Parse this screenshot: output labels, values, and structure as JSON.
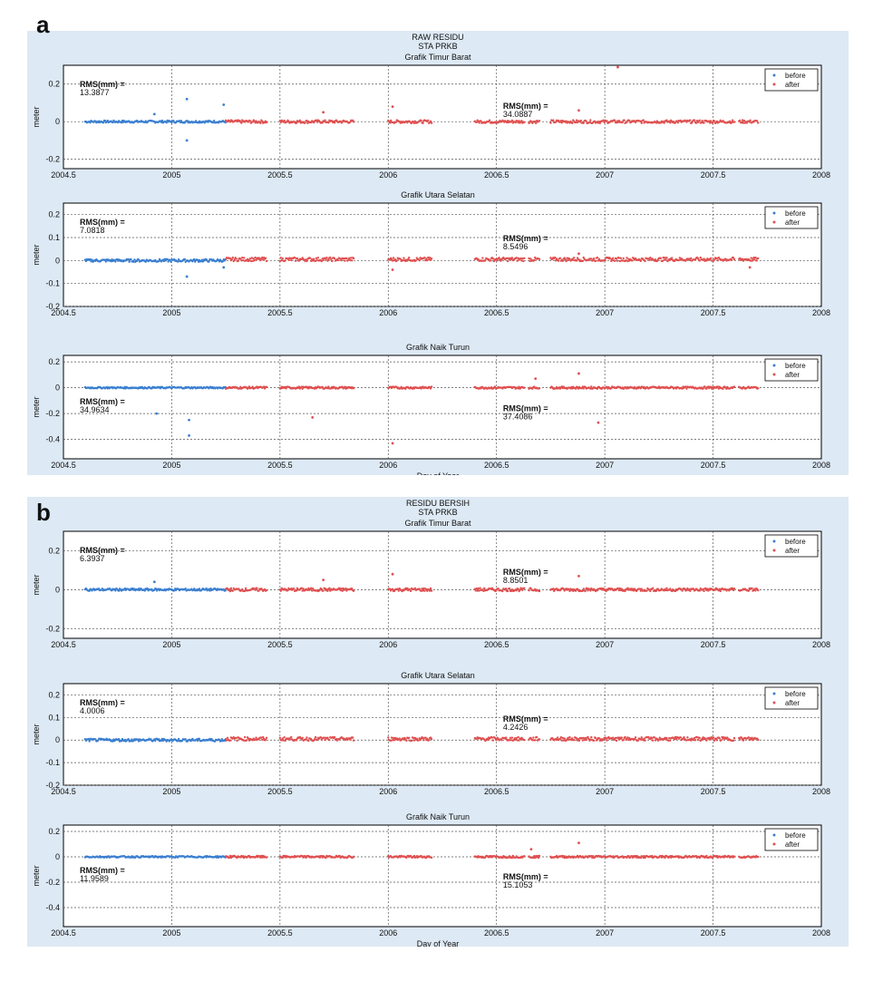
{
  "panels": [
    {
      "id": "a",
      "letter": "a",
      "title_lines": [
        "RAW RESIDU",
        "STA PRKB"
      ],
      "xlabel": "Day of Year",
      "subplots": [
        {
          "title": "Grafik Timur Barat",
          "ylabel": "meter",
          "yticks": [
            "0.2",
            "0",
            "-0.2"
          ],
          "rms_before": [
            "RMS(mm) =",
            "13.3877"
          ],
          "rms_after": [
            "RMS(mm) =",
            "34.0887"
          ]
        },
        {
          "title": "Grafik Utara Selatan",
          "ylabel": "meter",
          "yticks": [
            "0.2",
            "0.1",
            "0",
            "-0.1",
            "-0.2"
          ],
          "rms_before": [
            "RMS(mm) =",
            "7.0818"
          ],
          "rms_after": [
            "RMS(mm) =",
            "8.5496"
          ]
        },
        {
          "title": "Grafik Naik Turun",
          "ylabel": "meter",
          "yticks": [
            "0.2",
            "0",
            "-0.2",
            "-0.4"
          ],
          "rms_before": [
            "RMS(mm) =",
            "34.9634"
          ],
          "rms_after": [
            "RMS(mm) =",
            "37.4086"
          ]
        }
      ]
    },
    {
      "id": "b",
      "letter": "b",
      "title_lines": [
        "RESIDU BERSIH",
        "STA PRKB"
      ],
      "xlabel": "Day of Year",
      "subplots": [
        {
          "title": "Grafik Timur Barat",
          "ylabel": "meter",
          "yticks": [
            "0.2",
            "0",
            "-0.2"
          ],
          "rms_before": [
            "RMS(mm) =",
            "6.3937"
          ],
          "rms_after": [
            "RMS(mm) =",
            "8.8501"
          ]
        },
        {
          "title": "Grafik Utara Selatan",
          "ylabel": "meter",
          "yticks": [
            "0.2",
            "0.1",
            "0",
            "-0.1",
            "-0.2"
          ],
          "rms_before": [
            "RMS(mm) =",
            "4.0006"
          ],
          "rms_after": [
            "RMS(mm) =",
            "4.2426"
          ]
        },
        {
          "title": "Grafik Naik Turun",
          "ylabel": "meter",
          "yticks": [
            "0.2",
            "0",
            "-0.2",
            "-0.4"
          ],
          "rms_before": [
            "RMS(mm) =",
            "11.9589"
          ],
          "rms_after": [
            "RMS(mm) =",
            "15.1053"
          ]
        }
      ]
    }
  ],
  "xticks": [
    "2004.5",
    "2005",
    "2005.5",
    "2006",
    "2006.5",
    "2007",
    "2007.5",
    "2008"
  ],
  "legend": [
    "before",
    "after"
  ],
  "colors": {
    "before": "#3a7fd0",
    "after": "#e05050",
    "panel_bg": "#dde9f4"
  },
  "chart_data": [
    {
      "type": "scatter",
      "title": "RAW RESIDU STA PRKB",
      "xlabel": "Day of Year",
      "ylabel": "meter",
      "xlim": [
        2004.5,
        2008
      ],
      "subplots": [
        {
          "title": "Grafik Timur Barat",
          "ylim": [
            -0.25,
            0.3
          ],
          "series": [
            {
              "name": "before",
              "x_range": [
                2004.6,
                2005.25
              ],
              "baseline": 0.0,
              "outliers": [
                [
                  2004.92,
                  0.04
                ],
                [
                  2005.07,
                  0.12
                ],
                [
                  2005.07,
                  -0.1
                ],
                [
                  2005.24,
                  0.09
                ]
              ]
            },
            {
              "name": "after",
              "segments": [
                [
                  2005.25,
                  2005.44
                ],
                [
                  2005.5,
                  2005.84
                ],
                [
                  2006.0,
                  2006.2
                ],
                [
                  2006.4,
                  2006.63
                ],
                [
                  2006.65,
                  2006.7
                ],
                [
                  2006.75,
                  2007.6
                ],
                [
                  2007.62,
                  2007.71
                ]
              ],
              "baseline": 0.0,
              "outliers": [
                [
                  2006.02,
                  0.08
                ],
                [
                  2006.88,
                  0.06
                ],
                [
                  2007.06,
                  0.29
                ],
                [
                  2005.7,
                  0.05
                ]
              ]
            }
          ]
        },
        {
          "title": "Grafik Utara Selatan",
          "ylim": [
            -0.2,
            0.25
          ],
          "series": [
            {
              "name": "before",
              "x_range": [
                2004.6,
                2005.25
              ],
              "baseline": 0.0,
              "outliers": [
                [
                  2005.07,
                  -0.07
                ],
                [
                  2005.24,
                  -0.03
                ]
              ]
            },
            {
              "name": "after",
              "segments": [
                [
                  2005.25,
                  2005.44
                ],
                [
                  2005.5,
                  2005.84
                ],
                [
                  2006.0,
                  2006.2
                ],
                [
                  2006.4,
                  2006.63
                ],
                [
                  2006.65,
                  2006.7
                ],
                [
                  2006.75,
                  2007.6
                ],
                [
                  2007.62,
                  2007.71
                ]
              ],
              "baseline": 0.005,
              "outliers": [
                [
                  2006.02,
                  -0.04
                ],
                [
                  2006.88,
                  0.03
                ],
                [
                  2007.67,
                  -0.03
                ]
              ]
            }
          ]
        },
        {
          "title": "Grafik Naik Turun",
          "ylim": [
            -0.55,
            0.25
          ],
          "series": [
            {
              "name": "before",
              "x_range": [
                2004.6,
                2005.25
              ],
              "baseline": 0.0,
              "outliers": [
                [
                  2004.93,
                  -0.2
                ],
                [
                  2005.08,
                  -0.25
                ],
                [
                  2005.08,
                  -0.37
                ]
              ]
            },
            {
              "name": "after",
              "segments": [
                [
                  2005.25,
                  2005.44
                ],
                [
                  2005.5,
                  2005.84
                ],
                [
                  2006.0,
                  2006.2
                ],
                [
                  2006.4,
                  2006.63
                ],
                [
                  2006.65,
                  2006.7
                ],
                [
                  2006.75,
                  2007.6
                ],
                [
                  2007.62,
                  2007.71
                ]
              ],
              "baseline": 0.0,
              "outliers": [
                [
                  2006.02,
                  -0.43
                ],
                [
                  2005.65,
                  -0.23
                ],
                [
                  2006.68,
                  0.07
                ],
                [
                  2006.88,
                  0.11
                ],
                [
                  2006.97,
                  -0.27
                ]
              ]
            }
          ]
        }
      ]
    },
    {
      "type": "scatter",
      "title": "RESIDU BERSIH STA PRKB",
      "xlabel": "Day of Year",
      "ylabel": "meter",
      "xlim": [
        2004.5,
        2008
      ],
      "subplots": [
        {
          "title": "Grafik Timur Barat",
          "ylim": [
            -0.25,
            0.3
          ],
          "series": [
            {
              "name": "before",
              "x_range": [
                2004.6,
                2005.25
              ],
              "baseline": 0.0,
              "outliers": [
                [
                  2004.92,
                  0.04
                ]
              ]
            },
            {
              "name": "after",
              "segments": [
                [
                  2005.25,
                  2005.44
                ],
                [
                  2005.5,
                  2005.84
                ],
                [
                  2006.0,
                  2006.2
                ],
                [
                  2006.4,
                  2006.63
                ],
                [
                  2006.65,
                  2006.7
                ],
                [
                  2006.75,
                  2007.6
                ],
                [
                  2007.62,
                  2007.71
                ]
              ],
              "baseline": 0.0,
              "outliers": [
                [
                  2006.02,
                  0.08
                ],
                [
                  2006.88,
                  0.07
                ],
                [
                  2005.7,
                  0.05
                ]
              ]
            }
          ]
        },
        {
          "title": "Grafik Utara Selatan",
          "ylim": [
            -0.2,
            0.25
          ],
          "series": [
            {
              "name": "before",
              "x_range": [
                2004.6,
                2005.25
              ],
              "baseline": 0.0,
              "outliers": []
            },
            {
              "name": "after",
              "segments": [
                [
                  2005.25,
                  2005.44
                ],
                [
                  2005.5,
                  2005.84
                ],
                [
                  2006.0,
                  2006.2
                ],
                [
                  2006.4,
                  2006.63
                ],
                [
                  2006.65,
                  2006.7
                ],
                [
                  2006.75,
                  2007.6
                ],
                [
                  2007.62,
                  2007.71
                ]
              ],
              "baseline": 0.005,
              "outliers": []
            }
          ]
        },
        {
          "title": "Grafik Naik Turun",
          "ylim": [
            -0.55,
            0.25
          ],
          "series": [
            {
              "name": "before",
              "x_range": [
                2004.6,
                2005.25
              ],
              "baseline": 0.0,
              "outliers": []
            },
            {
              "name": "after",
              "segments": [
                [
                  2005.25,
                  2005.44
                ],
                [
                  2005.5,
                  2005.84
                ],
                [
                  2006.0,
                  2006.2
                ],
                [
                  2006.4,
                  2006.63
                ],
                [
                  2006.65,
                  2006.7
                ],
                [
                  2006.75,
                  2007.6
                ],
                [
                  2007.62,
                  2007.71
                ]
              ],
              "baseline": 0.0,
              "outliers": [
                [
                  2006.66,
                  0.06
                ],
                [
                  2006.88,
                  0.11
                ]
              ]
            }
          ]
        }
      ]
    }
  ]
}
